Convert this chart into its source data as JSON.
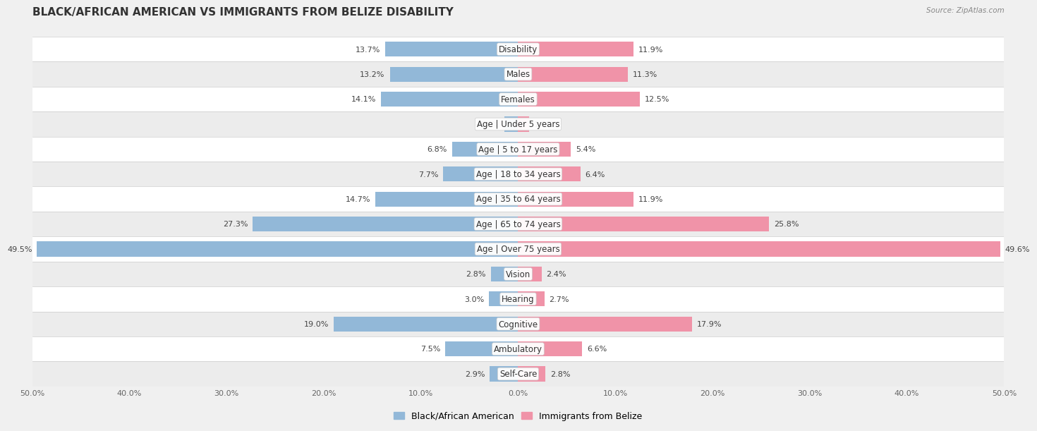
{
  "title": "BLACK/AFRICAN AMERICAN VS IMMIGRANTS FROM BELIZE DISABILITY",
  "source": "Source: ZipAtlas.com",
  "categories": [
    "Disability",
    "Males",
    "Females",
    "Age | Under 5 years",
    "Age | 5 to 17 years",
    "Age | 18 to 34 years",
    "Age | 35 to 64 years",
    "Age | 65 to 74 years",
    "Age | Over 75 years",
    "Vision",
    "Hearing",
    "Cognitive",
    "Ambulatory",
    "Self-Care"
  ],
  "black_values": [
    13.7,
    13.2,
    14.1,
    1.4,
    6.8,
    7.7,
    14.7,
    27.3,
    49.5,
    2.8,
    3.0,
    19.0,
    7.5,
    2.9
  ],
  "belize_values": [
    11.9,
    11.3,
    12.5,
    1.1,
    5.4,
    6.4,
    11.9,
    25.8,
    49.6,
    2.4,
    2.7,
    17.9,
    6.6,
    2.8
  ],
  "black_color": "#92b8d8",
  "belize_color": "#f093a8",
  "black_label": "Black/African American",
  "belize_label": "Immigrants from Belize",
  "axis_max": 50.0,
  "bg_white": "#ffffff",
  "bg_gray": "#ececec",
  "title_fontsize": 11,
  "label_fontsize": 8.5,
  "value_fontsize": 8.0,
  "source_fontsize": 7.5
}
